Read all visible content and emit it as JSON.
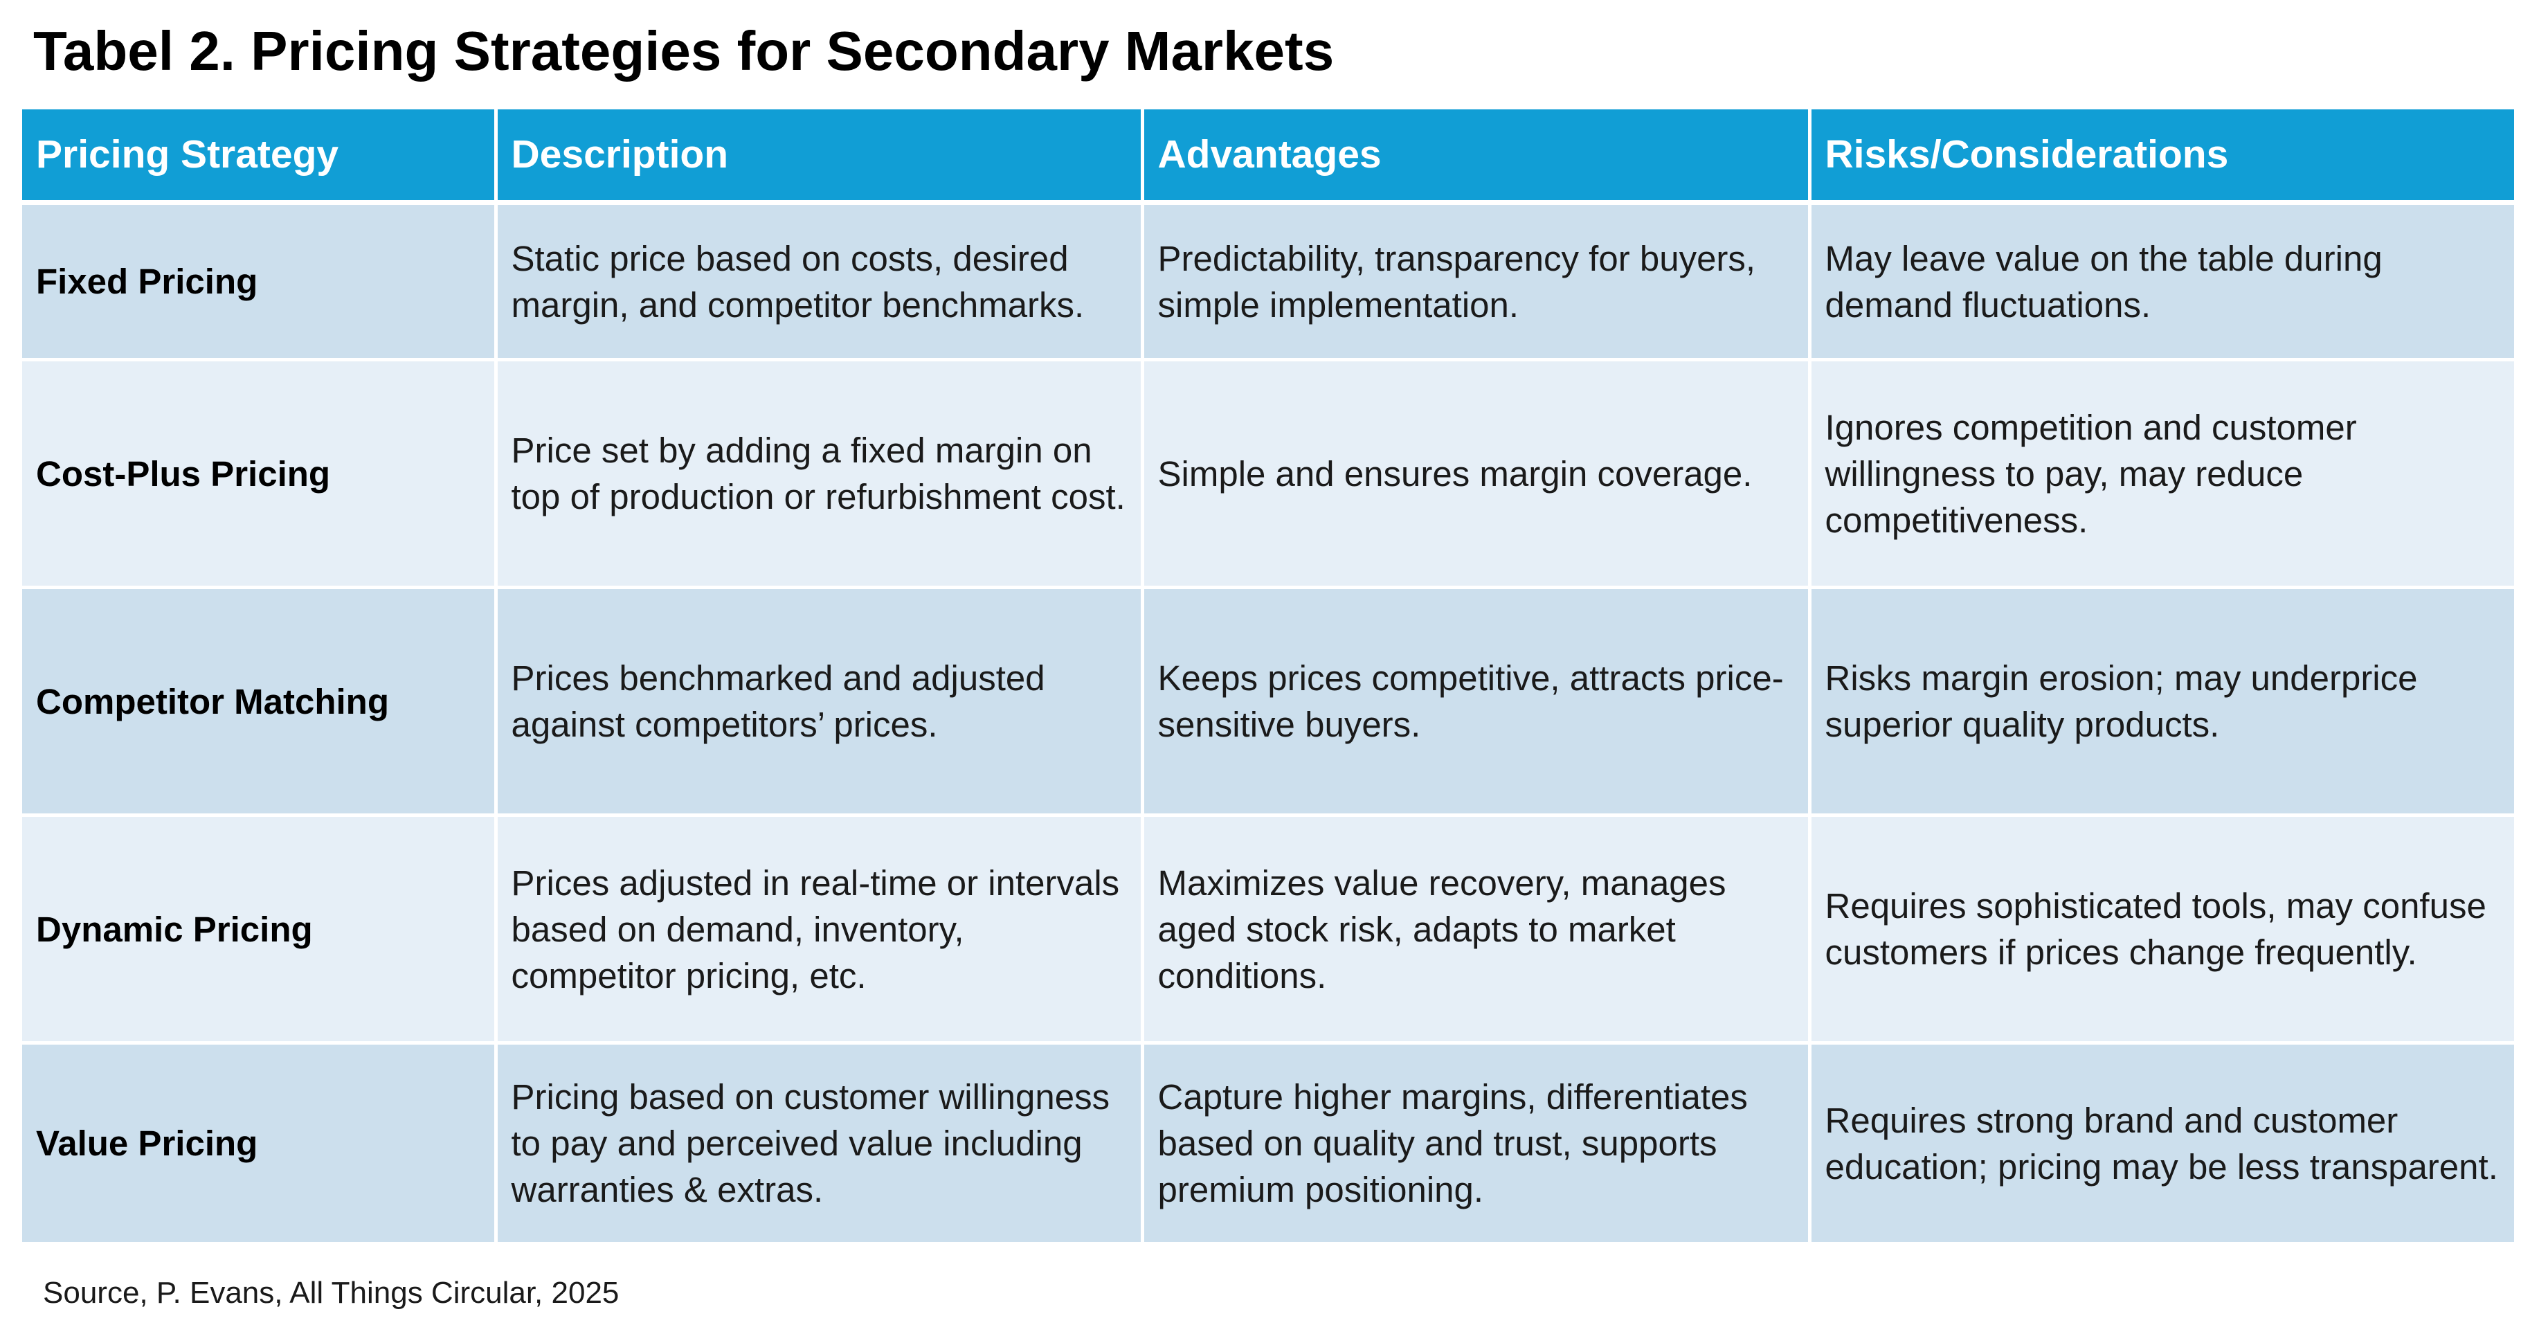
{
  "title": "Tabel 2. Pricing Strategies for Secondary Markets",
  "table": {
    "headers": [
      "Pricing Strategy",
      "Description",
      "Advantages",
      "Risks/Considerations"
    ],
    "rows": [
      {
        "strategy": "Fixed Pricing",
        "description": "Static price based on costs, desired margin, and competitor benchmarks.",
        "advantages": "Predictability, transparency for buyers, simple implementation.",
        "risks": "May leave value on the table during demand fluctuations."
      },
      {
        "strategy": "Cost-Plus Pricing",
        "description": "Price set by adding a fixed margin on top of production or refurbishment cost.",
        "advantages": "Simple and ensures margin coverage.",
        "risks": "Ignores competition and customer willingness to pay, may reduce competitiveness."
      },
      {
        "strategy": "Competitor Matching",
        "description": "Prices benchmarked and adjusted against competitors’ prices.",
        "advantages": "Keeps prices competitive, attracts price-sensitive buyers.",
        "risks": "Risks margin erosion; may underprice superior quality products."
      },
      {
        "strategy": "Dynamic Pricing",
        "description": "Prices adjusted in real-time or intervals based on demand, inventory, competitor pricing, etc.",
        "advantages": "Maximizes value recovery, manages aged stock risk, adapts to market conditions.",
        "risks": "Requires sophisticated tools, may confuse customers if prices change frequently."
      },
      {
        "strategy": "Value Pricing",
        "description": "Pricing based on customer willingness to pay and perceived value including warranties & extras.",
        "advantages": "Capture higher margins, differentiates based on quality and trust, supports premium positioning.",
        "risks": "Requires strong brand and customer education; pricing may be less transparent."
      }
    ]
  },
  "source": "Source, P. Evans, All Things Circular, 2025",
  "colors": {
    "header_background": "#119ed5",
    "header_text": "#ffffff",
    "row_dark": "#ccdfed",
    "row_light": "#e6eff7"
  }
}
